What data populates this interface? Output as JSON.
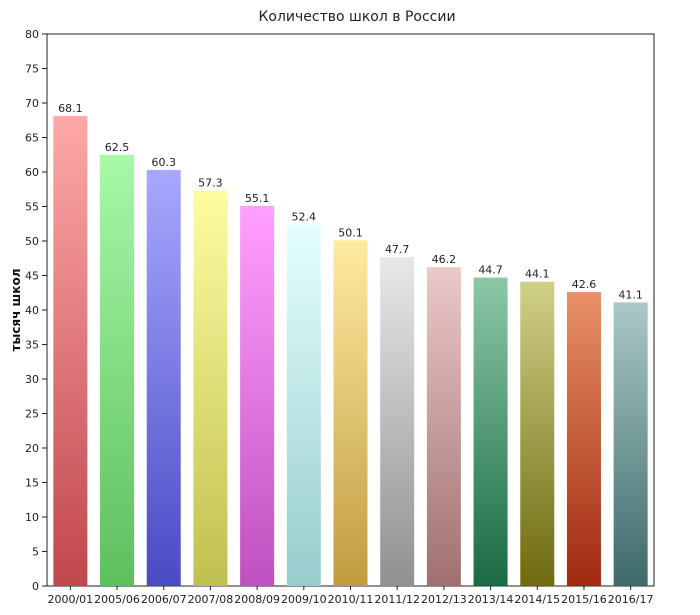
{
  "chart_data": {
    "type": "bar",
    "title": "Количество школ в России",
    "xlabel": "",
    "ylabel": "тысяч школ",
    "ylim": [
      0,
      80
    ],
    "yticks": [
      0,
      5,
      10,
      15,
      20,
      25,
      30,
      35,
      40,
      45,
      50,
      55,
      60,
      65,
      70,
      75,
      80
    ],
    "grid": false,
    "legend": "none",
    "categories": [
      "2000/01",
      "2005/06",
      "2006/07",
      "2007/08",
      "2008/09",
      "2009/10",
      "2010/11",
      "2011/12",
      "2012/13",
      "2013/14",
      "2014/15",
      "2015/16",
      "2016/17"
    ],
    "values": [
      68.1,
      62.5,
      60.3,
      57.3,
      55.1,
      52.4,
      50.1,
      47.7,
      46.2,
      44.7,
      44.1,
      42.6,
      41.1
    ],
    "data_labels": [
      "68.1",
      "62.5",
      "60.3",
      "57.3",
      "55.1",
      "52.4",
      "50.1",
      "47.7",
      "46.2",
      "44.7",
      "44.1",
      "42.6",
      "41.1"
    ],
    "colors": [
      [
        "#ffa8a8",
        "#c0474e"
      ],
      [
        "#a8f8a8",
        "#5cc05c"
      ],
      [
        "#a8a8ff",
        "#4a4ac4"
      ],
      [
        "#fdfda0",
        "#c0c050"
      ],
      [
        "#ffa0ff",
        "#c050c0"
      ],
      [
        "#e4ffff",
        "#98cccc"
      ],
      [
        "#ffeaa0",
        "#c09c40"
      ],
      [
        "#e8e8e8",
        "#909090"
      ],
      [
        "#ecc8c8",
        "#a07070"
      ],
      [
        "#8cc8a8",
        "#1a6a44"
      ],
      [
        "#d0d088",
        "#6e6a10"
      ],
      [
        "#e89068",
        "#a02a10"
      ],
      [
        "#aac8c8",
        "#3e6a6a"
      ]
    ]
  }
}
